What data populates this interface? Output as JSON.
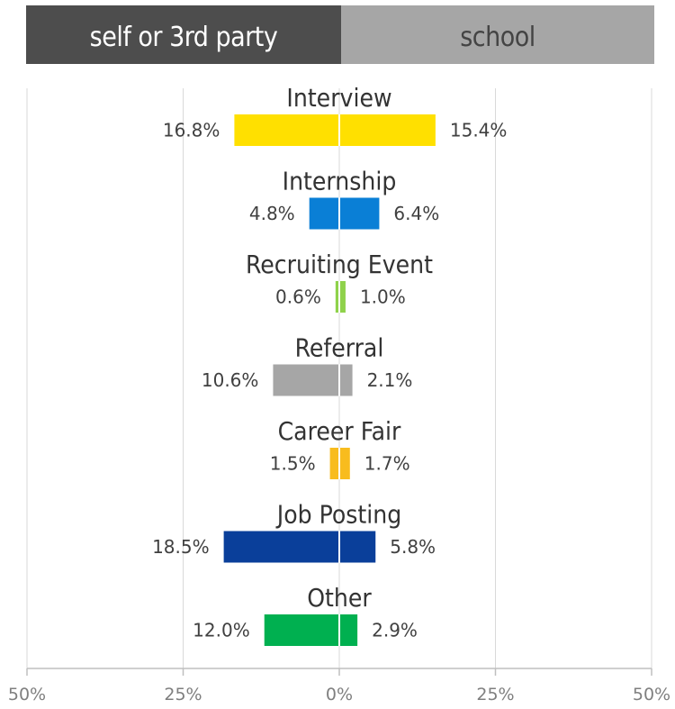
{
  "header": {
    "left_label": "self or 3rd party",
    "right_label": "school",
    "left_color": "#4d4d4d",
    "right_color": "#a6a6a6"
  },
  "chart_data": {
    "type": "bar",
    "orientation": "diverging-horizontal",
    "categories": [
      "Interview",
      "Internship",
      "Recruiting Event",
      "Referral",
      "Career Fair",
      "Job Posting",
      "Other"
    ],
    "series": [
      {
        "name": "self or 3rd party",
        "values": [
          16.8,
          4.8,
          0.6,
          10.6,
          1.5,
          18.5,
          12.0
        ]
      },
      {
        "name": "school",
        "values": [
          15.4,
          6.4,
          1.0,
          2.1,
          1.7,
          5.8,
          2.9
        ]
      }
    ],
    "value_labels": {
      "left": [
        "16.8%",
        "4.8%",
        "0.6%",
        "10.6%",
        "1.5%",
        "18.5%",
        "12.0%"
      ],
      "right": [
        "15.4%",
        "6.4%",
        "1.0%",
        "2.1%",
        "1.7%",
        "5.8%",
        "2.9%"
      ]
    },
    "colors": [
      "#ffe000",
      "#0a7fd6",
      "#8fd24b",
      "#a6a6a6",
      "#f8bc1e",
      "#0a3f9a",
      "#00b050"
    ],
    "xlim": [
      -50,
      50
    ],
    "ticks": [
      -50,
      -25,
      0,
      25,
      50
    ],
    "tick_labels": [
      "50%",
      "25%",
      "0%",
      "25%",
      "50%"
    ],
    "grid": true
  }
}
